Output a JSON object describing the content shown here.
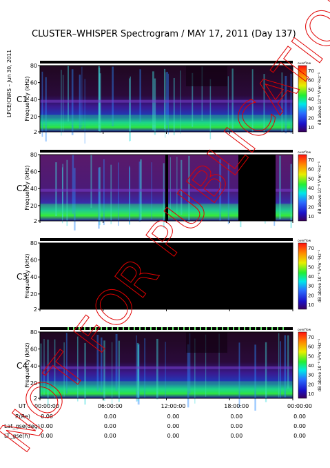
{
  "title": "CLUSTER–WHISPER Spectrogram / MAY 17, 2011 (Day 137)",
  "side_label": "LPCE/CNRS – Jun 30, 2011",
  "watermark": "NOT FOR PUBLICATION",
  "colors": {
    "c3_label": "#33cc33",
    "watermark": "#e00000"
  },
  "chart_data": {
    "type": "heatmap",
    "panels": [
      {
        "name": "C1",
        "ylabel": "Frequency (kHz)",
        "yticks": [
          "80",
          "60",
          "40",
          "20",
          "2"
        ]
      },
      {
        "name": "C2",
        "ylabel": "Frequency (kHz)",
        "yticks": [
          "80",
          "60",
          "40",
          "20",
          "2"
        ]
      },
      {
        "name": "C3",
        "ylabel": "Frequency (kHz)",
        "yticks": [
          "80",
          "60",
          "40",
          "20",
          "2"
        ]
      },
      {
        "name": "C4",
        "ylabel": "Frequency (kHz)",
        "yticks": [
          "80",
          "60",
          "40",
          "20",
          "2"
        ]
      }
    ],
    "ylim": [
      2,
      80
    ],
    "colorbar": {
      "label": "dB above 10⁻⁸ V²m⁻²Hz⁻¹",
      "top_label": "overflow",
      "ticks": [
        "70",
        "60",
        "50",
        "40",
        "30",
        "20",
        "10"
      ],
      "range": [
        10,
        70
      ]
    },
    "xaxis": {
      "rows": [
        {
          "label": "UT",
          "values": [
            "00:00:00",
            "06:00:00",
            "12:00:00",
            "18:00:00",
            "00:00:00"
          ]
        },
        {
          "label": "R(Re)",
          "values": [
            "0.00",
            "0.00",
            "0.00",
            "0.00",
            "0.00"
          ]
        },
        {
          "label": "Lat_gse(deg)",
          "values": [
            "0.00",
            "0.00",
            "0.00",
            "0.00",
            "0.00"
          ]
        },
        {
          "label": "LT_gse(h)",
          "values": [
            "0.00",
            "0.00",
            "0.00",
            "0.00",
            "0.00"
          ]
        }
      ]
    }
  }
}
